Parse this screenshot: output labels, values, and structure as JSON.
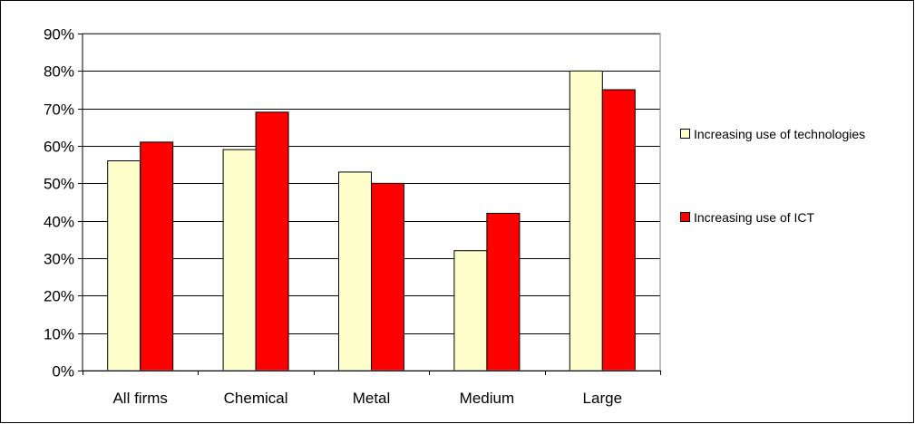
{
  "chart_data": {
    "type": "bar",
    "categories": [
      "All firms",
      "Chemical",
      "Metal",
      "Medium",
      "Large"
    ],
    "series": [
      {
        "name": "Increasing use of technologies",
        "color": "#FFFFCC",
        "values": [
          56,
          59,
          53,
          32,
          80
        ]
      },
      {
        "name": "Increasing use of ICT",
        "color": "#FF0000",
        "values": [
          61,
          69,
          50,
          42,
          75
        ]
      }
    ],
    "ylim": [
      0,
      90
    ],
    "yticks": [
      0,
      10,
      20,
      30,
      40,
      50,
      60,
      70,
      80,
      90
    ],
    "ytick_format": "percent",
    "grid": true,
    "plot_background": "#FFFFFF",
    "legend_position": "right"
  }
}
